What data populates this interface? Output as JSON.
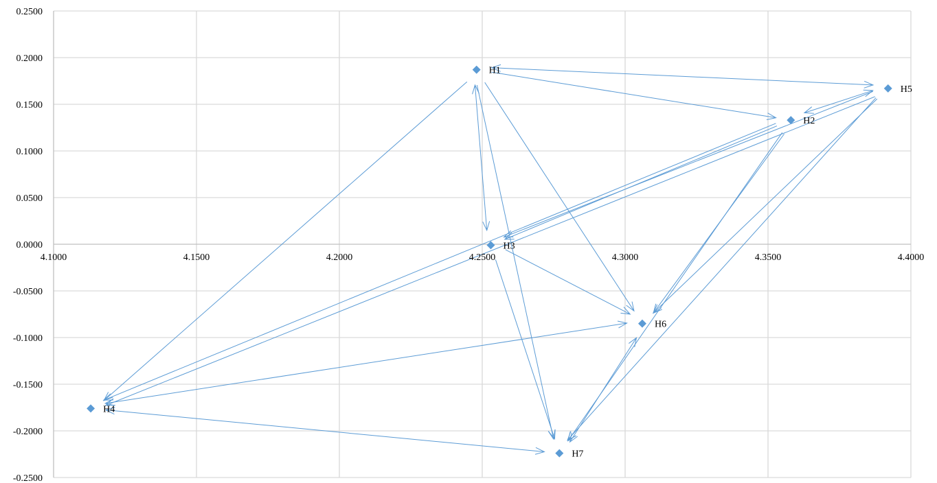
{
  "chart_data": {
    "type": "scatter",
    "title": "",
    "xlabel": "",
    "ylabel": "",
    "xlim": [
      4.1,
      4.4
    ],
    "ylim": [
      -0.25,
      0.25
    ],
    "x_ticks": [
      4.1,
      4.15,
      4.2,
      4.25,
      4.3,
      4.35,
      4.4
    ],
    "x_tick_labels": [
      "4.1000",
      "4.1500",
      "4.2000",
      "4.2500",
      "4.3000",
      "4.3500",
      "4.4000"
    ],
    "y_ticks": [
      0.25,
      0.2,
      0.15,
      0.1,
      0.05,
      0,
      -0.05,
      -0.1,
      -0.15,
      -0.2,
      -0.25
    ],
    "y_tick_labels": [
      "0.2500",
      "0.2000",
      "0.1500",
      "0.1000",
      "0.0500",
      "0.0000",
      "-0.0500",
      "-0.1000",
      "-0.1500",
      "-0.2000",
      "-0.2500"
    ],
    "grid": true,
    "legend": "none",
    "colors": {
      "marker": "#5b9bd5",
      "arrow": "#5b9bd5",
      "grid": "#d9d9d9"
    },
    "points": [
      {
        "label": "H1",
        "x": 4.248,
        "y": 0.187
      },
      {
        "label": "H2",
        "x": 4.358,
        "y": 0.133
      },
      {
        "label": "H3",
        "x": 4.253,
        "y": -0.001
      },
      {
        "label": "H4",
        "x": 4.113,
        "y": -0.176
      },
      {
        "label": "H5",
        "x": 4.392,
        "y": 0.167
      },
      {
        "label": "H6",
        "x": 4.306,
        "y": -0.085
      },
      {
        "label": "H7",
        "x": 4.277,
        "y": -0.224
      }
    ],
    "arrows": [
      {
        "from": "H1",
        "to": "H5",
        "bidirectional": true
      },
      {
        "from": "H1",
        "to": "H2",
        "bidirectional": false
      },
      {
        "from": "H1",
        "to": "H3",
        "bidirectional": true
      },
      {
        "from": "H1",
        "to": "H4",
        "bidirectional": false
      },
      {
        "from": "H1",
        "to": "H6",
        "bidirectional": false
      },
      {
        "from": "H1",
        "to": "H7",
        "bidirectional": false
      },
      {
        "from": "H2",
        "to": "H5",
        "bidirectional": true
      },
      {
        "from": "H2",
        "to": "H3",
        "bidirectional": false
      },
      {
        "from": "H2",
        "to": "H4",
        "bidirectional": false
      },
      {
        "from": "H2",
        "to": "H6",
        "bidirectional": false
      },
      {
        "from": "H2",
        "to": "H7",
        "bidirectional": false
      },
      {
        "from": "H5",
        "to": "H3",
        "bidirectional": false
      },
      {
        "from": "H5",
        "to": "H4",
        "bidirectional": false
      },
      {
        "from": "H5",
        "to": "H6",
        "bidirectional": false
      },
      {
        "from": "H5",
        "to": "H7",
        "bidirectional": false
      },
      {
        "from": "H3",
        "to": "H6",
        "bidirectional": false
      },
      {
        "from": "H3",
        "to": "H7",
        "bidirectional": false
      },
      {
        "from": "H6",
        "to": "H4",
        "bidirectional": true
      },
      {
        "from": "H6",
        "to": "H7",
        "bidirectional": true
      },
      {
        "from": "H4",
        "to": "H7",
        "bidirectional": true
      }
    ]
  }
}
